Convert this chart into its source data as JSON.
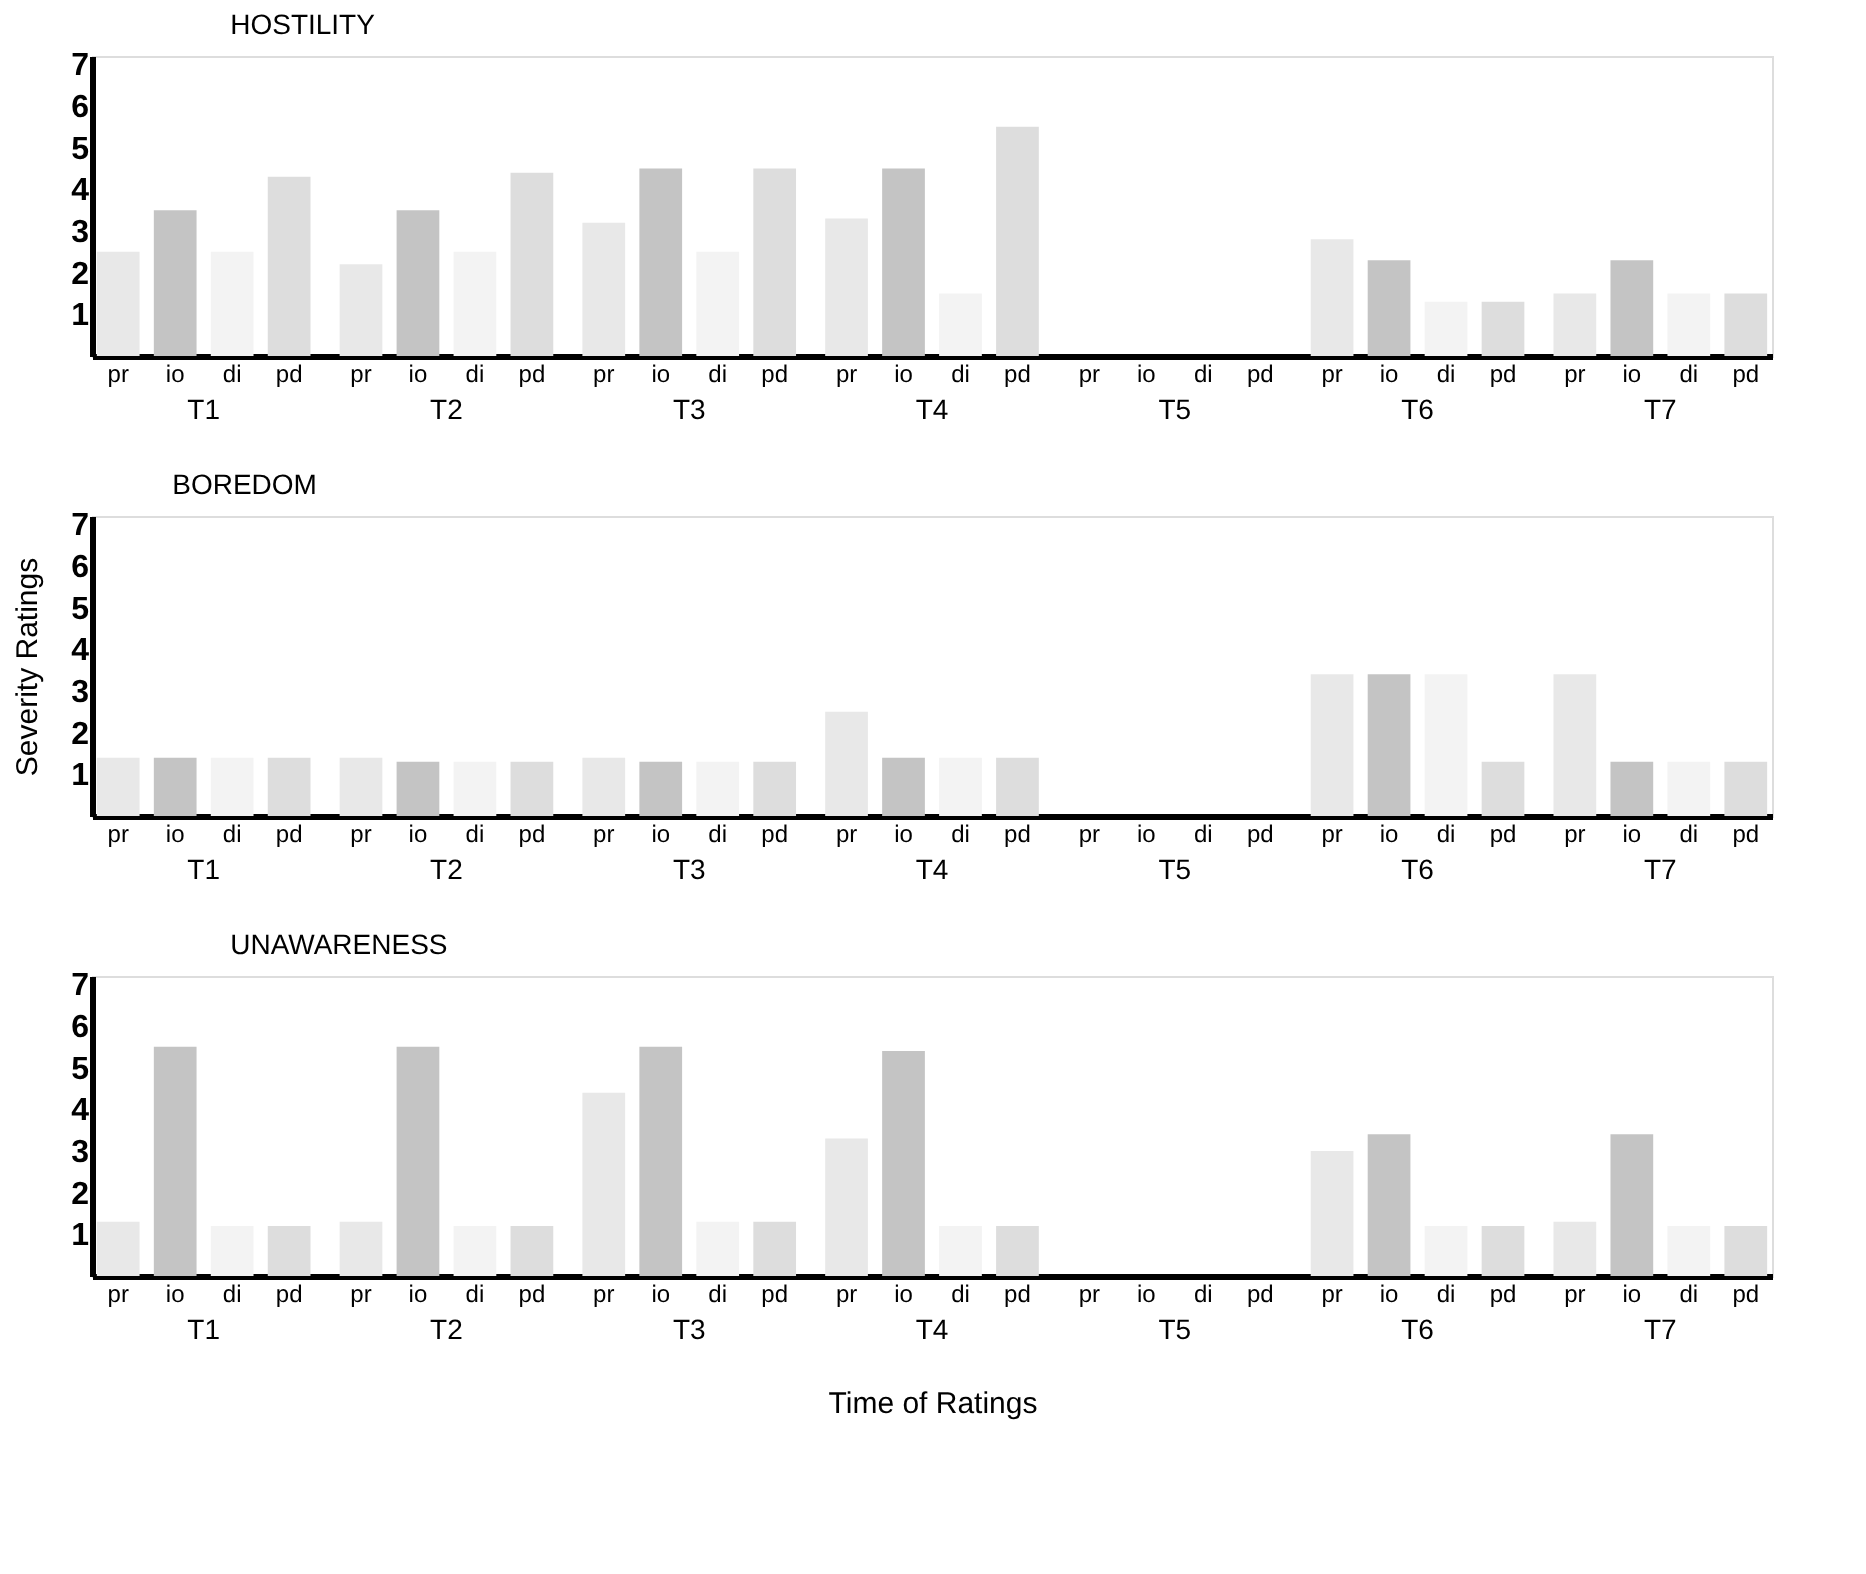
{
  "chart_data": [
    {
      "type": "bar",
      "title": "HOSTILITY",
      "categories": [
        "T1",
        "T2",
        "T3",
        "T4",
        "T5",
        "T6",
        "T7"
      ],
      "ylim": [
        0,
        7.2
      ],
      "yticks": [
        1,
        2,
        3,
        4,
        5,
        6,
        7
      ],
      "grid": false,
      "legend": "bottom",
      "series": [
        {
          "name": "pr",
          "color": "#e8e8e8",
          "values": [
            2.5,
            2.2,
            3.2,
            3.3,
            0,
            2.8,
            1.5
          ]
        },
        {
          "name": "io",
          "color": "#c4c4c4",
          "values": [
            3.5,
            3.5,
            4.5,
            4.5,
            0,
            2.3,
            2.3
          ]
        },
        {
          "name": "di",
          "color": "#f3f3f3",
          "values": [
            2.5,
            2.5,
            2.5,
            1.5,
            0,
            1.3,
            1.5
          ]
        },
        {
          "name": "pd",
          "color": "#dddddd",
          "values": [
            4.3,
            4.4,
            4.5,
            5.5,
            0,
            1.3,
            1.5
          ]
        }
      ]
    },
    {
      "type": "bar",
      "title": "BOREDOM",
      "ylabel": "Severity Ratings",
      "categories": [
        "T1",
        "T2",
        "T3",
        "T4",
        "T5",
        "T6",
        "T7"
      ],
      "ylim": [
        0,
        7.2
      ],
      "yticks": [
        1,
        2,
        3,
        4,
        5,
        6,
        7
      ],
      "grid": false,
      "legend": "bottom",
      "series": [
        {
          "name": "pr",
          "color": "#e8e8e8",
          "values": [
            1.4,
            1.4,
            1.4,
            2.5,
            0,
            3.4,
            3.4
          ]
        },
        {
          "name": "io",
          "color": "#d4d4d4",
          "values": [
            1.4,
            1.3,
            1.3,
            1.4,
            0,
            3.4,
            1.3
          ]
        },
        {
          "name": "di",
          "color": "#f3f3f3",
          "values": [
            1.4,
            1.3,
            1.3,
            1.4,
            0,
            3.4,
            1.3
          ]
        },
        {
          "name": "pd",
          "color": "#dddddd",
          "values": [
            1.4,
            1.3,
            1.3,
            1.4,
            0,
            1.3,
            1.3
          ]
        }
      ]
    },
    {
      "type": "bar",
      "title": "UNAWARENESS",
      "xlabel": "Time of Ratings",
      "categories": [
        "T1",
        "T2",
        "T3",
        "T4",
        "T5",
        "T6",
        "T7"
      ],
      "ylim": [
        0,
        7.2
      ],
      "yticks": [
        1,
        2,
        3,
        4,
        5,
        6,
        7
      ],
      "grid": false,
      "legend": "bottom",
      "series": [
        {
          "name": "pr",
          "color": "#e8e8e8",
          "values": [
            1.3,
            1.3,
            4.4,
            3.3,
            0,
            3.0,
            1.3
          ]
        },
        {
          "name": "io",
          "color": "#c4c4c4",
          "values": [
            5.5,
            5.5,
            5.5,
            5.4,
            0,
            3.4,
            3.4
          ]
        },
        {
          "name": "di",
          "color": "#f3f3f3",
          "values": [
            1.2,
            1.2,
            1.3,
            1.2,
            0,
            1.2,
            1.2
          ]
        },
        {
          "name": "pd",
          "color": "#dddddd",
          "values": [
            1.2,
            1.2,
            1.3,
            1.2,
            0,
            1.2,
            1.2
          ]
        }
      ]
    }
  ]
}
